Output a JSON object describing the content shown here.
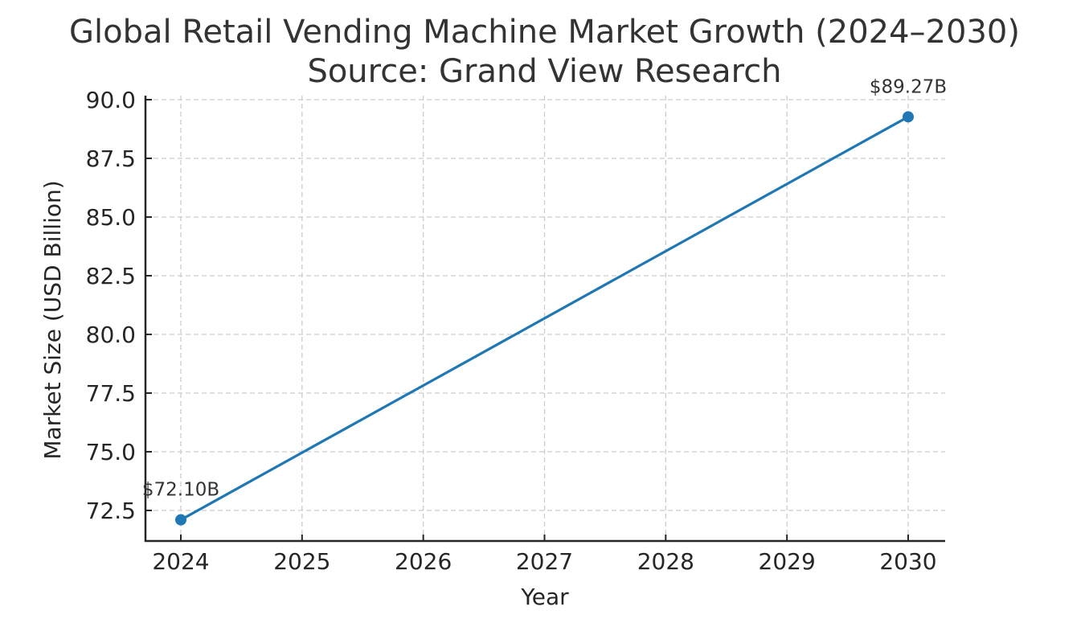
{
  "chart": {
    "title_line1": "Global Retail Vending Machine Market Growth (2024–2030)",
    "title_line2": "Source: Grand View Research",
    "xlabel": "Year",
    "ylabel": "Market Size (USD Billion)",
    "line_color": "#1f77b4",
    "grid_color": "#cccccc"
  },
  "chart_data": {
    "type": "line",
    "title": "Global Retail Vending Machine Market Growth (2024–2030)\nSource: Grand View Research",
    "xlabel": "Year",
    "ylabel": "Market Size (USD Billion)",
    "x": [
      2024,
      2030
    ],
    "values": [
      72.1,
      89.27
    ],
    "series": [
      {
        "name": "Market Size",
        "x": [
          2024,
          2030
        ],
        "values": [
          72.1,
          89.27
        ],
        "color": "#1f77b4",
        "marker": "circle"
      }
    ],
    "annotations": [
      {
        "x": 2024,
        "y": 72.1,
        "text": "$72.10B"
      },
      {
        "x": 2030,
        "y": 89.27,
        "text": "$89.27B"
      }
    ],
    "xticks": [
      "2024",
      "2025",
      "2026",
      "2027",
      "2028",
      "2029",
      "2030"
    ],
    "yticks": [
      "72.5",
      "75.0",
      "77.5",
      "80.0",
      "82.5",
      "85.0",
      "87.5",
      "90.0"
    ],
    "xlim": [
      2023.7,
      2030.3
    ],
    "ylim": [
      71.24,
      90.2
    ],
    "grid": true,
    "legend": null
  }
}
